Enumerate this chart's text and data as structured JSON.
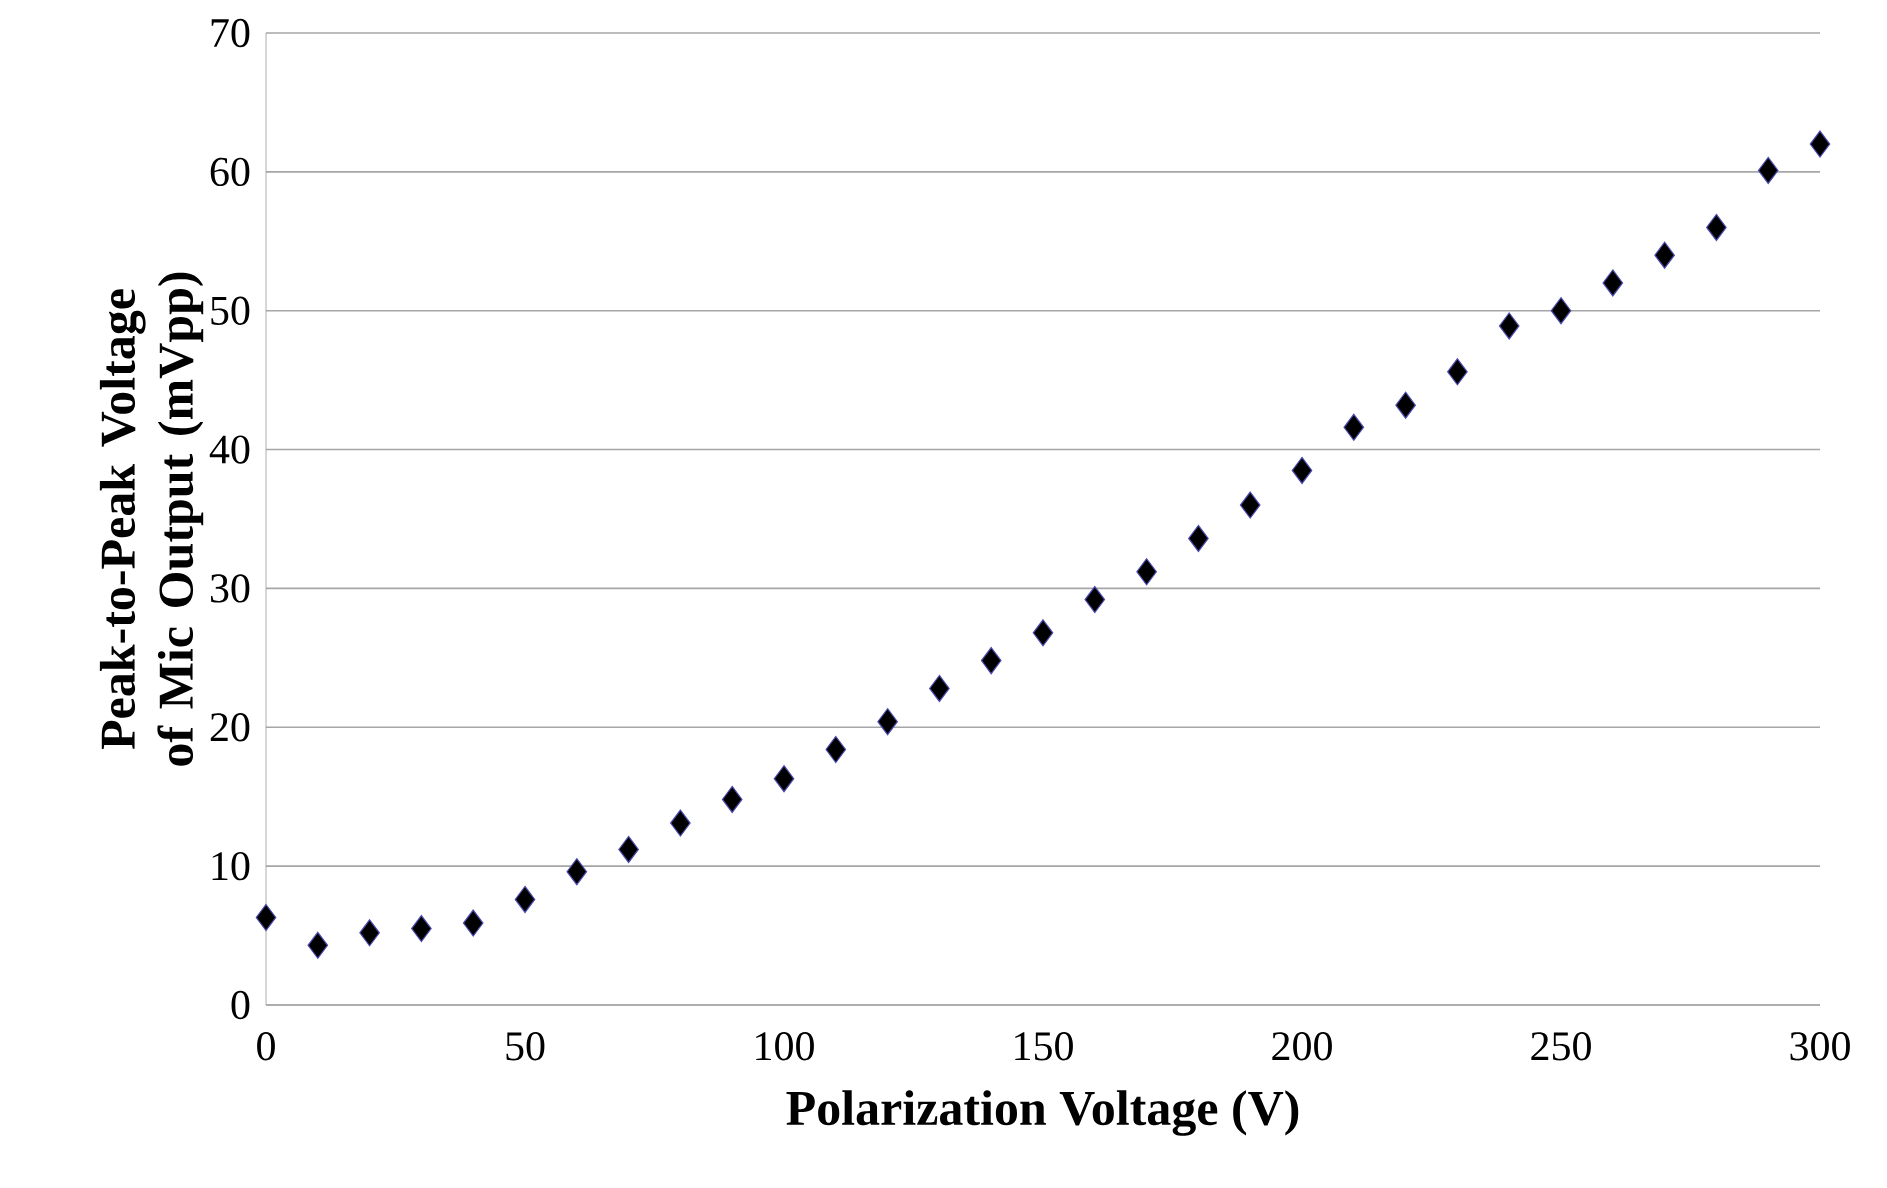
{
  "chart_data": {
    "type": "scatter",
    "xlabel": "Polarization Voltage (V)",
    "ylabel": "Peak-to-Peak Voltage of Mic Output (mVpp)",
    "x": [
      0,
      10,
      20,
      30,
      40,
      50,
      60,
      70,
      80,
      90,
      100,
      110,
      120,
      130,
      140,
      150,
      160,
      170,
      180,
      190,
      200,
      210,
      220,
      230,
      240,
      250,
      260,
      270,
      280,
      290,
      300
    ],
    "series": [
      {
        "color": "#000000",
        "values": [
          6.3,
          4.3,
          5.2,
          5.5,
          5.9,
          7.6,
          9.6,
          11.2,
          13.1,
          14.8,
          16.3,
          18.4,
          20.4,
          22.8,
          24.8,
          26.8,
          29.2,
          31.2,
          33.6,
          36.0,
          38.5,
          41.6,
          43.2,
          45.6,
          48.9,
          50.0,
          52.0,
          54.0,
          56.0,
          60.1,
          62.0
        ]
      }
    ],
    "xlim": [
      0,
      300
    ],
    "xticks": [
      0,
      50,
      100,
      150,
      200,
      250,
      300
    ],
    "ylim": [
      0,
      70
    ],
    "yticks": [
      0,
      10,
      20,
      30,
      40,
      50,
      60,
      70
    ],
    "grid": "y",
    "marker": "diamond"
  }
}
